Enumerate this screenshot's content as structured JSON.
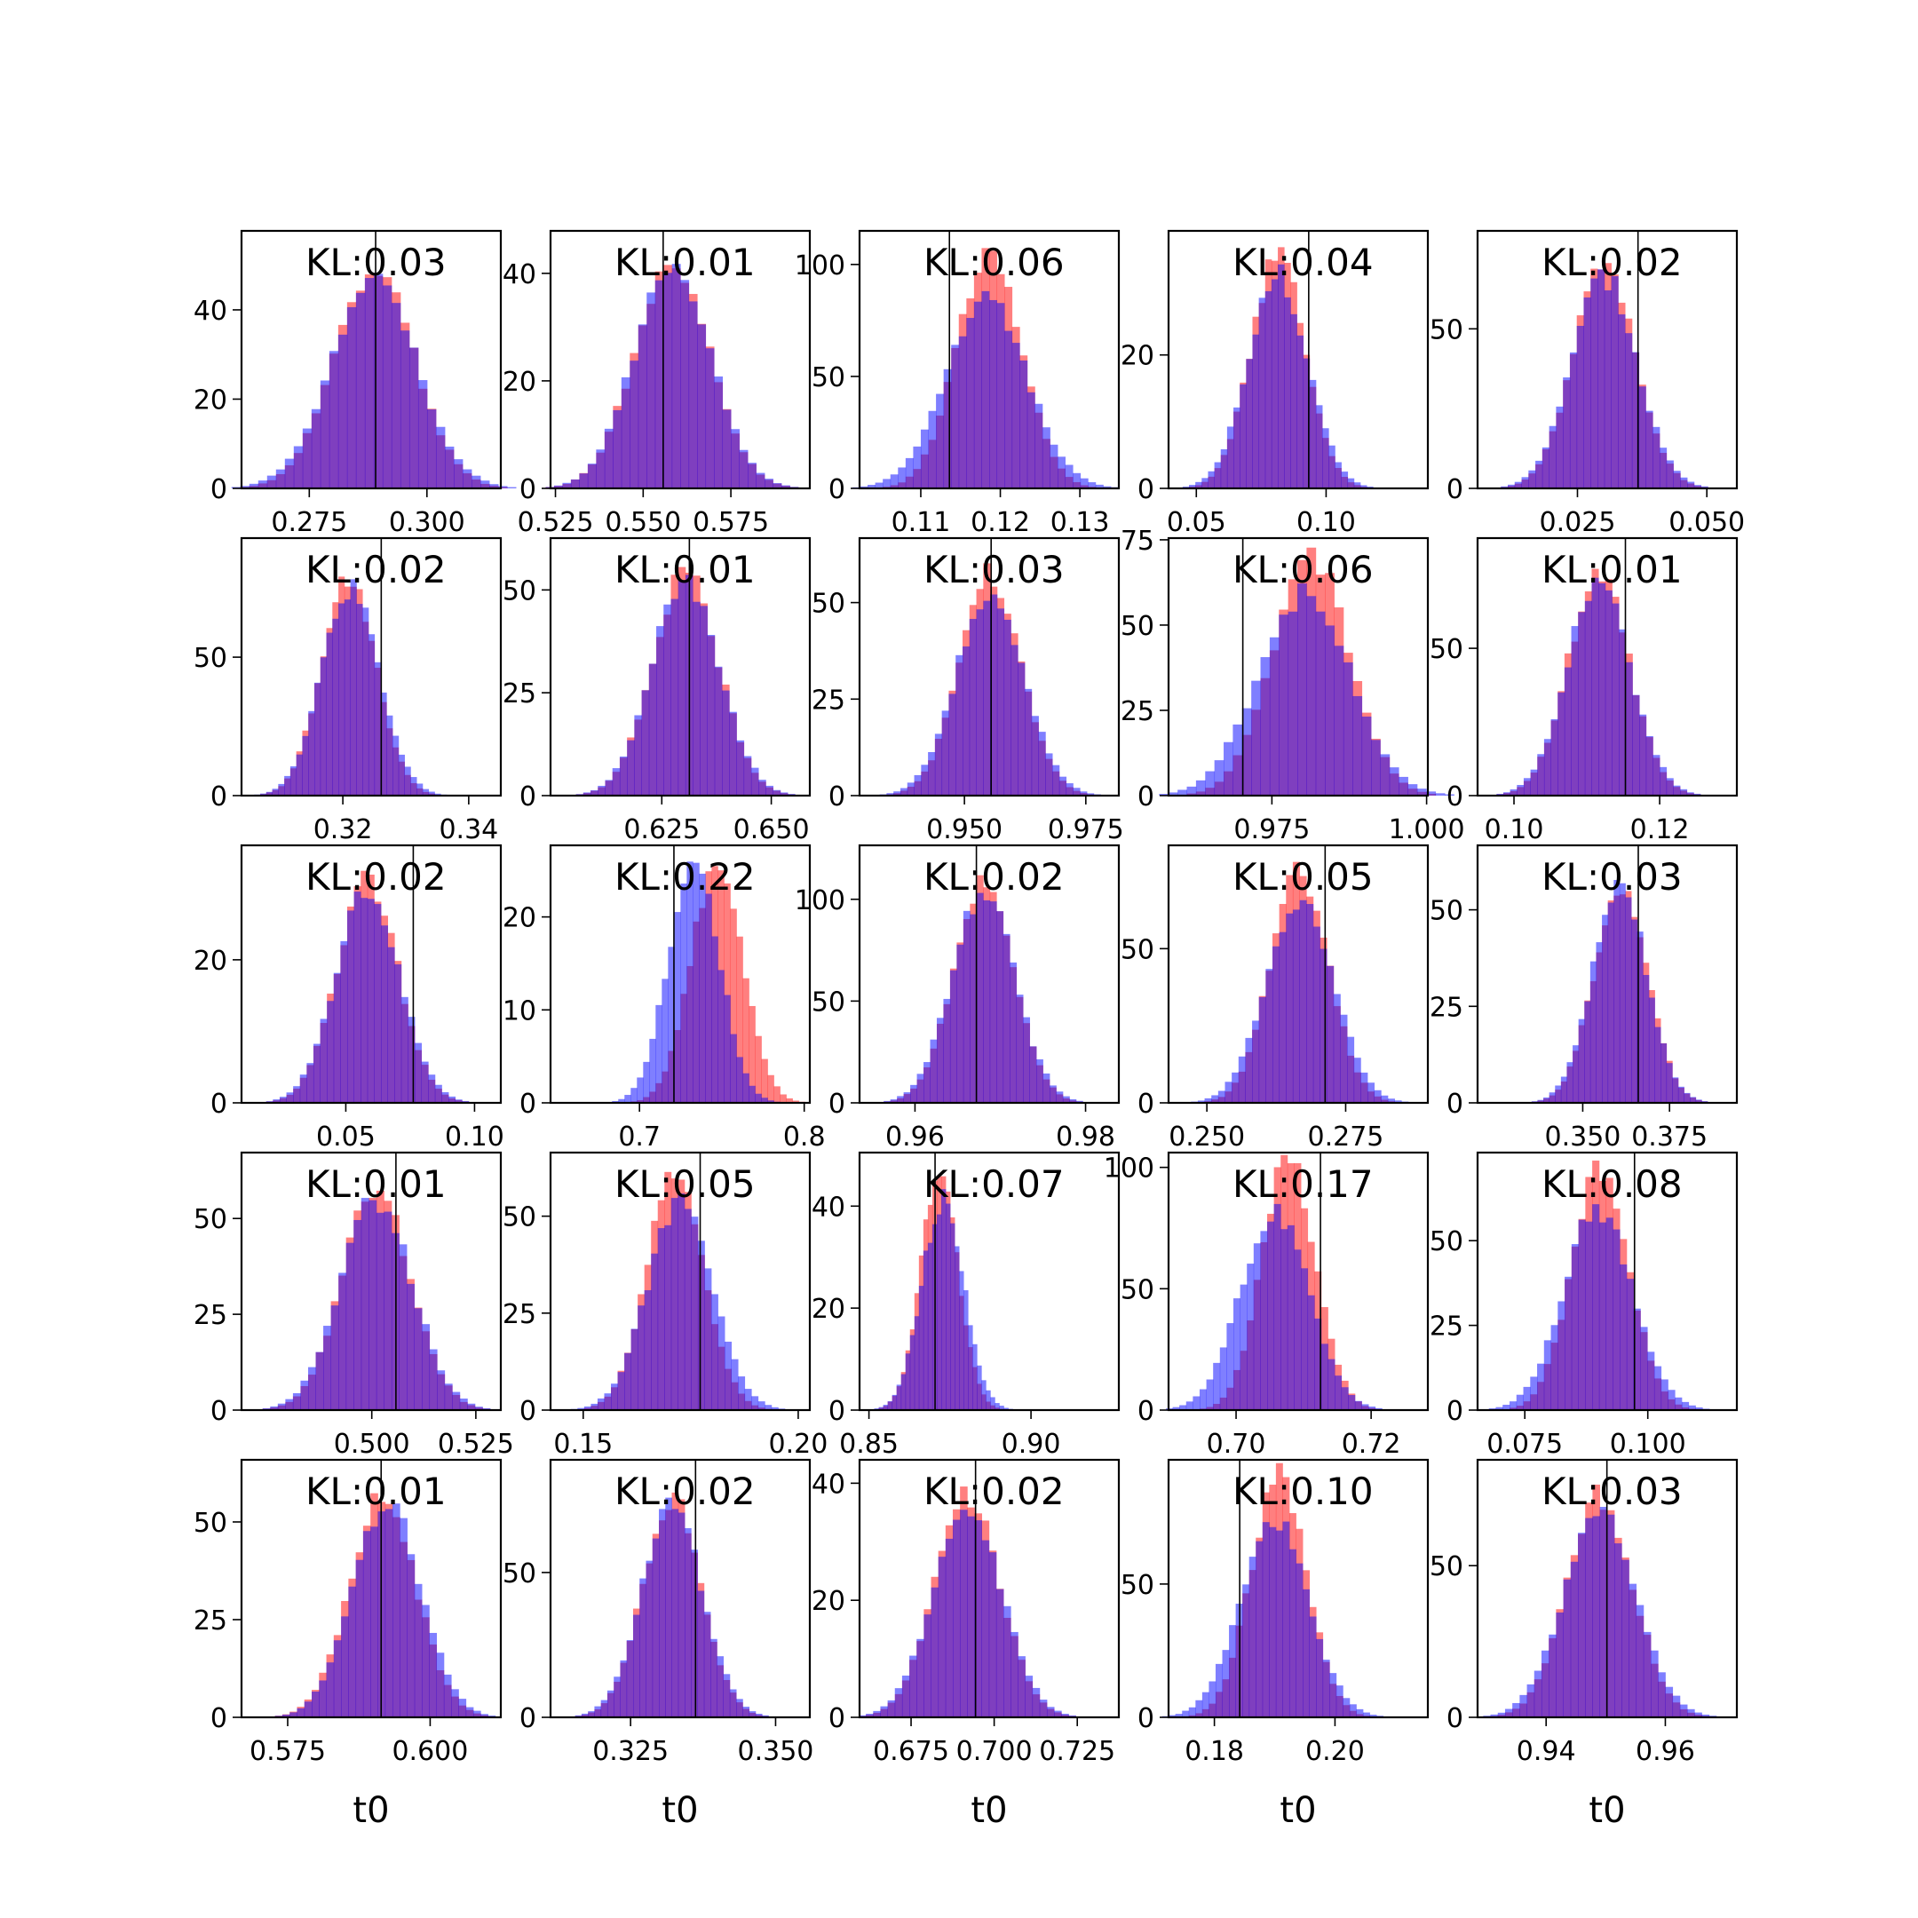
{
  "figure": {
    "background": "#ffffff",
    "colors": {
      "series_a": "#ff0000",
      "series_b": "#0000ff",
      "series_opacity": 0.5,
      "truth_line": "#000000",
      "axes": "#000000"
    }
  },
  "chart_data": [
    {
      "type": "bar",
      "kl": "KL:0.03",
      "xticks": [
        "0.275",
        "0.300"
      ],
      "yticks": [
        "0",
        "20",
        "40"
      ],
      "xlim": [
        0.2606,
        0.3157
      ],
      "ylim": [
        0,
        57.7
      ],
      "mean": 0.2887,
      "sd": 0.0085,
      "truth": 0.2891,
      "a_scale": 1.0,
      "a_bias": 0.0,
      "b_scale": 1.08,
      "b_bias": 0.0
    },
    {
      "type": "bar",
      "kl": "KL:0.01",
      "xticks": [
        "0.525",
        "0.550",
        "0.575"
      ],
      "yticks": [
        "0",
        "20",
        "40"
      ],
      "xlim": [
        0.5236,
        0.5975
      ],
      "ylim": [
        0,
        47.9
      ],
      "mean": 0.5582,
      "sd": 0.0108,
      "truth": 0.5557,
      "a_scale": 1.0,
      "a_bias": 0.0,
      "b_scale": 1.02,
      "b_bias": 0.0
    },
    {
      "type": "bar",
      "kl": "KL:0.06",
      "xticks": [
        "0.11",
        "0.12",
        "0.13"
      ],
      "yticks": [
        "0",
        "50",
        "100"
      ],
      "xlim": [
        0.1023,
        0.1349
      ],
      "ylim": [
        0,
        115
      ],
      "mean": 0.1186,
      "sd": 0.0043,
      "truth": 0.1136,
      "a_scale": 0.95,
      "a_bias": 0.0,
      "b_scale": 1.18,
      "b_bias": -0.0004
    },
    {
      "type": "bar",
      "kl": "KL:0.04",
      "xticks": [
        "0.05",
        "0.10"
      ],
      "yticks": [
        "0",
        "20"
      ],
      "xlim": [
        0.0393,
        0.1392
      ],
      "ylim": [
        0,
        38.6
      ],
      "mean": 0.0814,
      "sd": 0.011,
      "truth": 0.0933,
      "a_scale": 0.95,
      "a_bias": 0.0,
      "b_scale": 1.04,
      "b_bias": 0.0
    },
    {
      "type": "bar",
      "kl": "KL:0.02",
      "xticks": [
        "0.025",
        "0.050"
      ],
      "yticks": [
        "0",
        "50"
      ],
      "xlim": [
        0.0057,
        0.0558
      ],
      "ylim": [
        0,
        80.7
      ],
      "mean": 0.0302,
      "sd": 0.006,
      "truth": 0.0367,
      "a_scale": 1.0,
      "a_bias": 0.0,
      "b_scale": 1.05,
      "b_bias": 0.0
    },
    {
      "type": "bar",
      "kl": "KL:0.02",
      "xticks": [
        "0.32",
        "0.34"
      ],
      "yticks": [
        "0",
        "50"
      ],
      "xlim": [
        0.3039,
        0.3451
      ],
      "ylim": [
        0,
        93
      ],
      "mean": 0.3212,
      "sd": 0.0043,
      "truth": 0.3261,
      "a_scale": 1.0,
      "a_bias": -0.0003,
      "b_scale": 1.06,
      "b_bias": 0.0
    },
    {
      "type": "bar",
      "kl": "KL:0.01",
      "xticks": [
        "0.625",
        "0.650"
      ],
      "yticks": [
        "0",
        "25",
        "50"
      ],
      "xlim": [
        0.5996,
        0.6588
      ],
      "ylim": [
        0,
        62.6
      ],
      "mean": 0.6304,
      "sd": 0.0075,
      "truth": 0.6313,
      "a_scale": 1.0,
      "a_bias": 0.0,
      "b_scale": 1.03,
      "b_bias": 0.0
    },
    {
      "type": "bar",
      "kl": "KL:0.03",
      "xticks": [
        "0.950",
        "0.975"
      ],
      "yticks": [
        "0",
        "25",
        "50"
      ],
      "xlim": [
        0.9284,
        0.9818
      ],
      "ylim": [
        0,
        66.7
      ],
      "mean": 0.9553,
      "sd": 0.0064,
      "truth": 0.9555,
      "a_scale": 1.0,
      "a_bias": 0.0,
      "b_scale": 1.08,
      "b_bias": 0.0
    },
    {
      "type": "bar",
      "kl": "KL:0.06",
      "xticks": [
        "0.975",
        "1.000"
      ],
      "yticks": [
        "0",
        "25",
        "50",
        "75"
      ],
      "xlim": [
        0.9583,
        1.0002
      ],
      "ylim": [
        0,
        75.5
      ],
      "mean": 0.9806,
      "sd": 0.0067,
      "truth": 0.9703,
      "a_scale": 0.93,
      "a_bias": 0.0006,
      "b_scale": 1.1,
      "b_bias": -0.0004
    },
    {
      "type": "bar",
      "kl": "KL:0.01",
      "xticks": [
        "0.10",
        "0.12"
      ],
      "yticks": [
        "0",
        "50"
      ],
      "xlim": [
        0.095,
        0.1306
      ],
      "ylim": [
        0,
        87.4
      ],
      "mean": 0.1116,
      "sd": 0.0042,
      "truth": 0.1153,
      "a_scale": 1.0,
      "a_bias": 0.0,
      "b_scale": 1.04,
      "b_bias": 0.0
    },
    {
      "type": "bar",
      "kl": "KL:0.02",
      "xticks": [
        "0.05",
        "0.10"
      ],
      "yticks": [
        "0",
        "20"
      ],
      "xlim": [
        0.0095,
        0.1102
      ],
      "ylim": [
        0,
        36
      ],
      "mean": 0.0584,
      "sd": 0.0118,
      "truth": 0.0762,
      "a_scale": 1.0,
      "a_bias": 0.0,
      "b_scale": 1.04,
      "b_bias": 0.0
    },
    {
      "type": "bar",
      "kl": "KL:0.22",
      "xticks": [
        "0.7",
        "0.8"
      ],
      "yticks": [
        "0",
        "10",
        "20"
      ],
      "xlim": [
        0.646,
        0.8034
      ],
      "ylim": [
        0,
        27.7
      ],
      "mean": 0.74,
      "sd": 0.017,
      "truth": 0.7209,
      "a_scale": 0.92,
      "a_bias": 0.007,
      "b_scale": 0.9,
      "b_bias": -0.007
    },
    {
      "type": "bar",
      "kl": "KL:0.02",
      "xticks": [
        "0.96",
        "0.98"
      ],
      "yticks": [
        "0",
        "50",
        "100"
      ],
      "xlim": [
        0.9535,
        0.9839
      ],
      "ylim": [
        0,
        126.5
      ],
      "mean": 0.968,
      "sd": 0.0035,
      "truth": 0.9672,
      "a_scale": 1.0,
      "a_bias": 0.0,
      "b_scale": 1.05,
      "b_bias": 0.0
    },
    {
      "type": "bar",
      "kl": "KL:0.05",
      "xticks": [
        "0.250",
        "0.275"
      ],
      "yticks": [
        "0",
        "50"
      ],
      "xlim": [
        0.2431,
        0.2898
      ],
      "ylim": [
        0,
        83.5
      ],
      "mean": 0.2667,
      "sd": 0.0055,
      "truth": 0.2713,
      "a_scale": 0.95,
      "a_bias": 0.0,
      "b_scale": 1.08,
      "b_bias": 0.0
    },
    {
      "type": "bar",
      "kl": "KL:0.03",
      "xticks": [
        "0.350",
        "0.375"
      ],
      "yticks": [
        "0",
        "25",
        "50"
      ],
      "xlim": [
        0.3197,
        0.3944
      ],
      "ylim": [
        0,
        66.7
      ],
      "mean": 0.3606,
      "sd": 0.0076,
      "truth": 0.366,
      "a_scale": 1.0,
      "a_bias": 0.0003,
      "b_scale": 1.03,
      "b_bias": 0.0
    },
    {
      "type": "bar",
      "kl": "KL:0.01",
      "xticks": [
        "0.500",
        "0.525"
      ],
      "yticks": [
        "0",
        "25",
        "50"
      ],
      "xlim": [
        0.4687,
        0.531
      ],
      "ylim": [
        0,
        67.2
      ],
      "mean": 0.5011,
      "sd": 0.0082,
      "truth": 0.5058,
      "a_scale": 1.0,
      "a_bias": 0.0,
      "b_scale": 1.05,
      "b_bias": 0.0
    },
    {
      "type": "bar",
      "kl": "KL:0.05",
      "xticks": [
        "0.15",
        "0.20"
      ],
      "yticks": [
        "0",
        "25",
        "50"
      ],
      "xlim": [
        0.1424,
        0.2027
      ],
      "ylim": [
        0,
        66.4
      ],
      "mean": 0.172,
      "sd": 0.007,
      "truth": 0.1772,
      "a_scale": 0.95,
      "a_bias": -0.0006,
      "b_scale": 1.08,
      "b_bias": 0.0004
    },
    {
      "type": "bar",
      "kl": "KL:0.07",
      "xticks": [
        "0.85",
        "0.90"
      ],
      "yticks": [
        "0",
        "20",
        "40"
      ],
      "xlim": [
        0.8471,
        0.9271
      ],
      "ylim": [
        0,
        50.5
      ],
      "mean": 0.8723,
      "sd": 0.0062,
      "truth": 0.8704,
      "a_scale": 0.95,
      "a_bias": -0.0006,
      "b_scale": 1.05,
      "b_bias": 0.0004
    },
    {
      "type": "bar",
      "kl": "KL:0.17",
      "xticks": [
        "0.70",
        "0.72"
      ],
      "yticks": [
        "0",
        "50",
        "100"
      ],
      "xlim": [
        0.69,
        0.7284
      ],
      "ylim": [
        0,
        106.1
      ],
      "mean": 0.7066,
      "sd": 0.0045,
      "truth": 0.7125,
      "a_scale": 0.88,
      "a_bias": 0.0012,
      "b_scale": 1.12,
      "b_bias": -0.0009
    },
    {
      "type": "bar",
      "kl": "KL:0.08",
      "xticks": [
        "0.075",
        "0.100"
      ],
      "yticks": [
        "0",
        "25",
        "50"
      ],
      "xlim": [
        0.0654,
        0.1181
      ],
      "ylim": [
        0,
        76
      ],
      "mean": 0.0901,
      "sd": 0.0063,
      "truth": 0.0973,
      "a_scale": 0.92,
      "a_bias": 0.0002,
      "b_scale": 1.1,
      "b_bias": -0.0002
    },
    {
      "type": "bar",
      "kl": "KL:0.01",
      "xticks": [
        "0.575",
        "0.600"
      ],
      "yticks": [
        "0",
        "25",
        "50"
      ],
      "xlim": [
        0.5669,
        0.6124
      ],
      "ylim": [
        0,
        65.9
      ],
      "mean": 0.5921,
      "sd": 0.0058,
      "truth": 0.5914,
      "a_scale": 1.0,
      "a_bias": -0.0004,
      "b_scale": 1.03,
      "b_bias": 0.0002
    },
    {
      "type": "bar",
      "kl": "KL:0.02",
      "xticks": [
        "0.325",
        "0.350"
      ],
      "yticks": [
        "0",
        "50"
      ],
      "xlim": [
        0.3112,
        0.3559
      ],
      "ylim": [
        0,
        88.9
      ],
      "mean": 0.3321,
      "sd": 0.005,
      "truth": 0.3362,
      "a_scale": 1.0,
      "a_bias": 0.0,
      "b_scale": 1.05,
      "b_bias": 0.0
    },
    {
      "type": "bar",
      "kl": "KL:0.02",
      "xticks": [
        "0.675",
        "0.700",
        "0.725"
      ],
      "yticks": [
        "0",
        "20",
        "40"
      ],
      "xlim": [
        0.6595,
        0.7375
      ],
      "ylim": [
        0,
        44
      ],
      "mean": 0.6919,
      "sd": 0.0098,
      "truth": 0.6944,
      "a_scale": 1.0,
      "a_bias": 0.0,
      "b_scale": 1.05,
      "b_bias": 0.0
    },
    {
      "type": "bar",
      "kl": "KL:0.10",
      "xticks": [
        "0.18",
        "0.20"
      ],
      "yticks": [
        "0",
        "50"
      ],
      "xlim": [
        0.1724,
        0.2154
      ],
      "ylim": [
        0,
        96.6
      ],
      "mean": 0.1902,
      "sd": 0.005,
      "truth": 0.1842,
      "a_scale": 0.92,
      "a_bias": 0.0004,
      "b_scale": 1.12,
      "b_bias": -0.0003
    },
    {
      "type": "bar",
      "kl": "KL:0.03",
      "xticks": [
        "0.94",
        "0.96"
      ],
      "yticks": [
        "0",
        "50"
      ],
      "xlim": [
        0.9285,
        0.972
      ],
      "ylim": [
        0,
        84.9
      ],
      "mean": 0.949,
      "sd": 0.0055,
      "truth": 0.9502,
      "a_scale": 1.0,
      "a_bias": 0.0,
      "b_scale": 1.1,
      "b_bias": 0.0
    }
  ],
  "xlabel": "t0"
}
